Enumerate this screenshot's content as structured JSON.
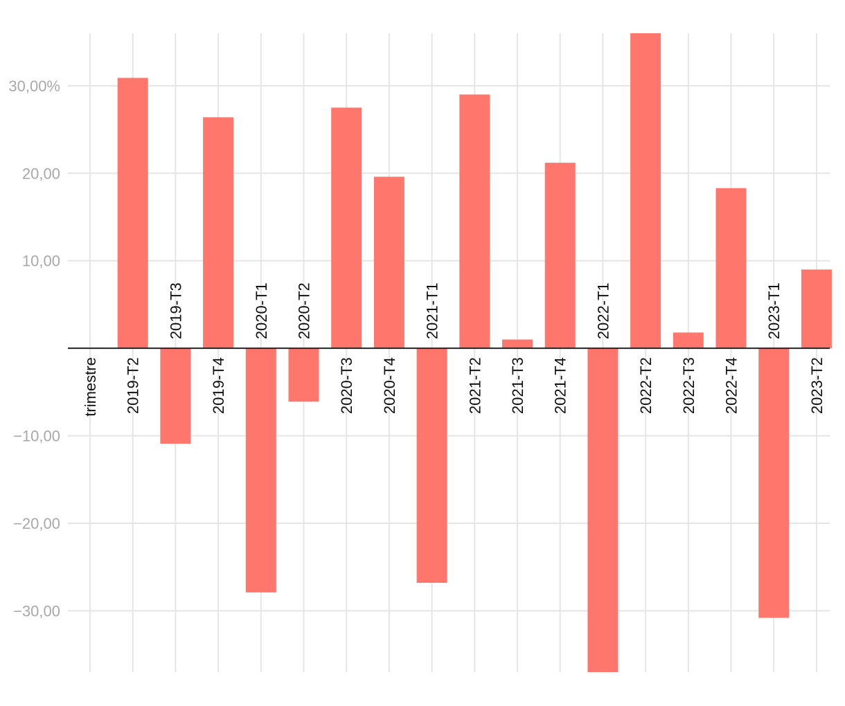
{
  "chart_data": {
    "type": "bar",
    "categories": [
      "trimestre",
      "2019-T2",
      "2019-T3",
      "2019-T4",
      "2020-T1",
      "2020-T2",
      "2020-T3",
      "2020-T4",
      "2021-T1",
      "2021-T2",
      "2021-T3",
      "2021-T4",
      "2022-T1",
      "2022-T2",
      "2022-T3",
      "2022-T4",
      "2023-T1",
      "2023-T2"
    ],
    "values": [
      null,
      30.9,
      -10.9,
      26.4,
      -27.9,
      -6.1,
      27.5,
      19.6,
      -26.8,
      29.0,
      1.0,
      21.2,
      -37.0,
      36.0,
      1.8,
      18.3,
      -30.8,
      9.0
    ],
    "ylim": [
      -37.0,
      36.0
    ],
    "yticks": [
      30,
      20,
      10,
      -10,
      -20,
      -30
    ],
    "ytick_labels": [
      "30,00%",
      "20,00",
      "10,00",
      "−10,00",
      "−20,00",
      "−30,00"
    ],
    "bar_color": "#ff766d",
    "grid": true,
    "legend": "none",
    "title": "",
    "xlabel": "",
    "ylabel": ""
  }
}
